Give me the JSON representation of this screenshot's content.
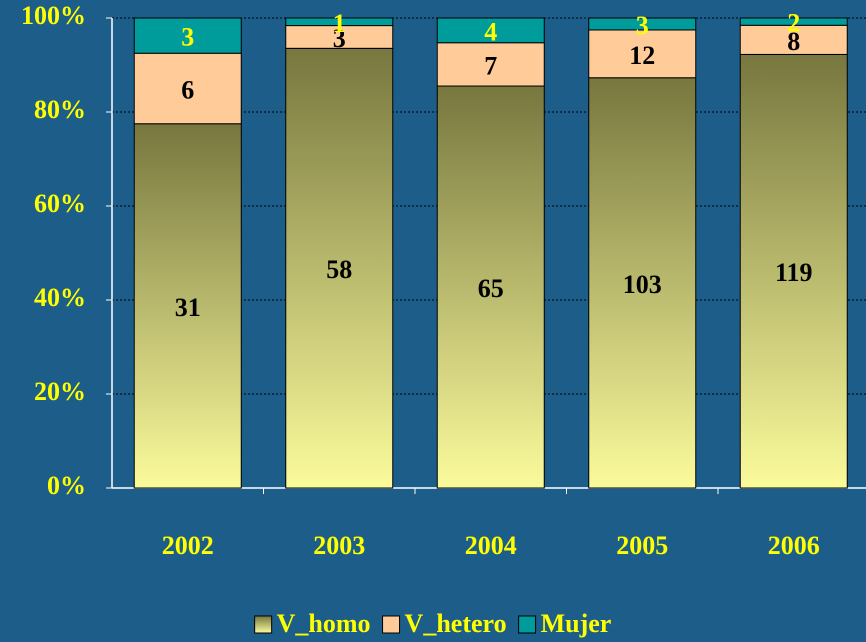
{
  "chart_data": {
    "type": "bar",
    "stacking": "percent",
    "categories": [
      "2002",
      "2003",
      "2004",
      "2005",
      "2006"
    ],
    "series": [
      {
        "name": "V_homo",
        "color": "#fbfb9c",
        "gradient": [
          "#fbfb9c",
          "#77773f"
        ],
        "label_color": "#000000",
        "values": [
          31,
          58,
          65,
          103,
          119
        ]
      },
      {
        "name": "V_hetero",
        "color": "#ffcc99",
        "label_color": "#000000",
        "values": [
          6,
          3,
          7,
          12,
          8
        ]
      },
      {
        "name": "Mujer",
        "color": "#009b9b",
        "label_color": "#ffff00",
        "values": [
          3,
          1,
          4,
          3,
          2
        ]
      }
    ],
    "ylim": [
      0,
      100
    ],
    "yticks": [
      {
        "value": 0,
        "label": "0%"
      },
      {
        "value": 20,
        "label": "20%"
      },
      {
        "value": 40,
        "label": "40%"
      },
      {
        "value": 60,
        "label": "60%"
      },
      {
        "value": 80,
        "label": "80%"
      },
      {
        "value": 100,
        "label": "100%"
      }
    ],
    "grid": true,
    "legend": "bottom"
  }
}
